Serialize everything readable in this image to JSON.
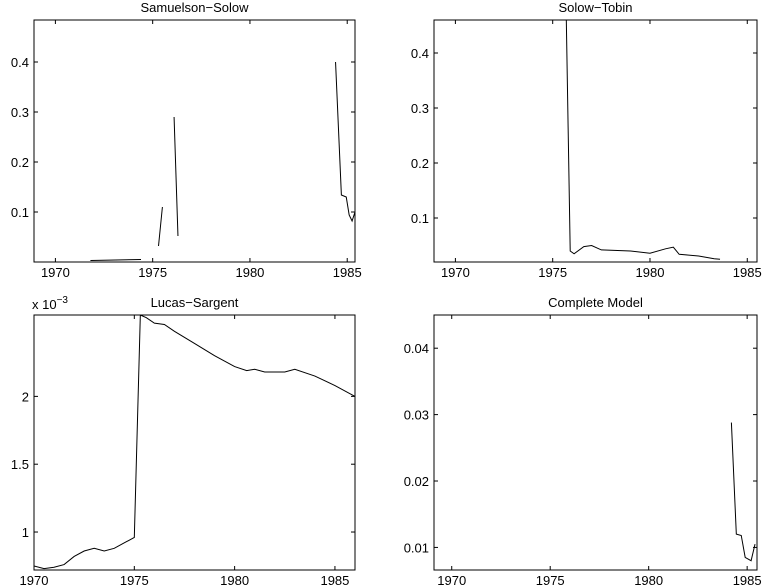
{
  "chart_data": [
    {
      "type": "line",
      "title": "Samuelson−Solow",
      "color": "#000000",
      "x": [
        1971.8,
        1974.4,
        1974.9,
        1975.3,
        1975.5,
        1975.8,
        1976.1,
        1976.3,
        1980.0,
        1984.4,
        1984.7,
        1984.95,
        1985.1,
        1985.25,
        1985.4
      ],
      "values": [
        0.003,
        0.005,
        null,
        0.032,
        0.11,
        null,
        0.29,
        0.052,
        null,
        0.4,
        0.134,
        0.13,
        0.094,
        0.082,
        0.1
      ],
      "xlim": [
        1968.9,
        1985.4
      ],
      "ylim": [
        0,
        0.484
      ],
      "xticks": [
        1970,
        1975,
        1980,
        1985
      ],
      "yticks": [
        0.1,
        0.2,
        0.3,
        0.4
      ]
    },
    {
      "type": "line",
      "title": "Solow−Tobin",
      "color": "#000000",
      "x": [
        1975.7,
        1975.9,
        1976.1,
        1976.6,
        1977.0,
        1977.5,
        1979.0,
        1980.0,
        1980.8,
        1981.2,
        1981.5,
        1982.5,
        1983.3,
        1983.6
      ],
      "values": [
        0.46,
        0.04,
        0.035,
        0.048,
        0.05,
        0.042,
        0.04,
        0.036,
        0.044,
        0.047,
        0.034,
        0.031,
        0.026,
        0.025
      ],
      "xlim": [
        1968.9,
        1985.5
      ],
      "ylim": [
        0.02,
        0.46
      ],
      "xticks": [
        1970,
        1975,
        1980,
        1985
      ],
      "yticks": [
        0.1,
        0.2,
        0.3,
        0.4
      ]
    },
    {
      "type": "line",
      "title": "Lucas−Sargent",
      "color": "#000000",
      "y_multiplier": "x 10",
      "y_multiplier_exponent": "−3",
      "x": [
        1970.0,
        1970.5,
        1971.0,
        1971.5,
        1972.0,
        1972.5,
        1973.0,
        1973.5,
        1974.0,
        1974.5,
        1975.0,
        1975.3,
        1975.6,
        1976.0,
        1976.5,
        1977.0,
        1978.0,
        1979.0,
        1980.0,
        1980.6,
        1981.0,
        1981.5,
        1982.5,
        1983.0,
        1984.0,
        1985.0,
        1986.0
      ],
      "values": [
        0.75,
        0.73,
        0.74,
        0.76,
        0.82,
        0.86,
        0.88,
        0.86,
        0.88,
        0.92,
        0.96,
        2.6,
        2.58,
        2.54,
        2.53,
        2.48,
        2.39,
        2.3,
        2.22,
        2.19,
        2.2,
        2.18,
        2.18,
        2.2,
        2.15,
        2.08,
        2.0
      ],
      "xlim": [
        1970,
        1986
      ],
      "ylim": [
        0.72,
        2.6
      ],
      "xticks": [
        1970,
        1975,
        1980,
        1985
      ],
      "yticks": [
        1,
        1.5,
        2
      ]
    },
    {
      "type": "line",
      "title": "Complete Model",
      "color": "#000000",
      "x": [
        1984.2,
        1984.45,
        1984.7,
        1984.9,
        1985.2,
        1985.4
      ],
      "values": [
        0.0288,
        0.012,
        0.0118,
        0.0085,
        0.008,
        0.0105
      ],
      "xlim": [
        1969.1,
        1985.5
      ],
      "ylim": [
        0.0066,
        0.045
      ],
      "xticks": [
        1970,
        1975,
        1980,
        1985
      ],
      "yticks": [
        0.01,
        0.02,
        0.03,
        0.04
      ]
    }
  ]
}
